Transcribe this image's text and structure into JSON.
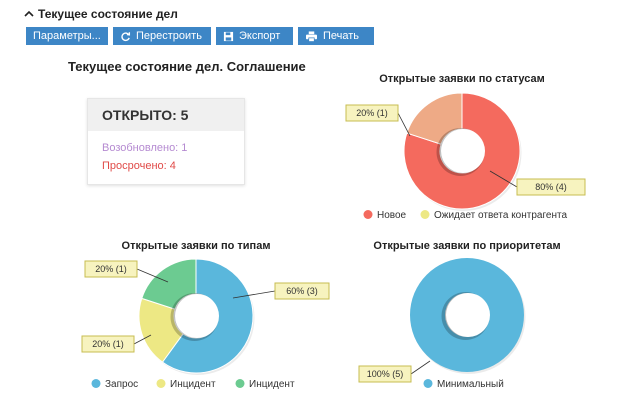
{
  "header": {
    "title": "Текущее состояние дел"
  },
  "toolbar": {
    "params_label": "Параметры...",
    "rebuild_label": "Перестроить",
    "export_label": "Экспорт",
    "print_label": "Печать"
  },
  "page_title": "Текущее состояние дел. Соглашение",
  "summary": {
    "open_label": "ОТКРЫТО: 5",
    "reopened_label": "Возобновлено: 1",
    "overdue_label": "Просрочено: 4"
  },
  "colors": {
    "button": "#3d86c6",
    "new": "#f46a5e",
    "waiting": "#eeaa86",
    "request": "#5ab7dc",
    "incident_yellow": "#ede884",
    "incident_green": "#6ccb91",
    "minimal": "#5ab7dc",
    "callout_fill": "#f7f3bf",
    "callout_stroke": "#c7bc52"
  },
  "chart_data": [
    {
      "id": "status",
      "type": "pie",
      "title": "Открытые заявки по статусам",
      "slices": [
        {
          "label": "Новое",
          "value": 4,
          "percent": 80,
          "callout": "80% (4)",
          "color": "#f46a5e"
        },
        {
          "label": "Ожидает ответа контрагента",
          "value": 1,
          "percent": 20,
          "callout": "20% (1)",
          "color": "#eeaa86"
        }
      ],
      "legend": [
        {
          "label": "Новое",
          "color": "#f46a5e"
        },
        {
          "label": "Ожидает ответа контрагента",
          "color": "#ede884"
        }
      ],
      "legend_position": "bottom"
    },
    {
      "id": "types",
      "type": "pie",
      "title": "Открытые заявки по типам",
      "slices": [
        {
          "label": "Запрос",
          "value": 3,
          "percent": 60,
          "callout": "60% (3)",
          "color": "#5ab7dc"
        },
        {
          "label": "Инцидент",
          "value": 1,
          "percent": 20,
          "callout": "20% (1)",
          "color": "#ede884"
        },
        {
          "label": "Инцидент",
          "value": 1,
          "percent": 20,
          "callout": "20% (1)",
          "color": "#6ccb91"
        }
      ],
      "legend": [
        {
          "label": "Запрос",
          "color": "#5ab7dc"
        },
        {
          "label": "Инцидент",
          "color": "#ede884"
        },
        {
          "label": "Инцидент",
          "color": "#6ccb91"
        }
      ],
      "legend_position": "bottom"
    },
    {
      "id": "priorities",
      "type": "pie",
      "title": "Открытые заявки по приоритетам",
      "slices": [
        {
          "label": "Минимальный",
          "value": 5,
          "percent": 100,
          "callout": "100% (5)",
          "color": "#5ab7dc"
        }
      ],
      "legend": [
        {
          "label": "Минимальный",
          "color": "#5ab7dc"
        }
      ],
      "legend_position": "bottom"
    }
  ]
}
